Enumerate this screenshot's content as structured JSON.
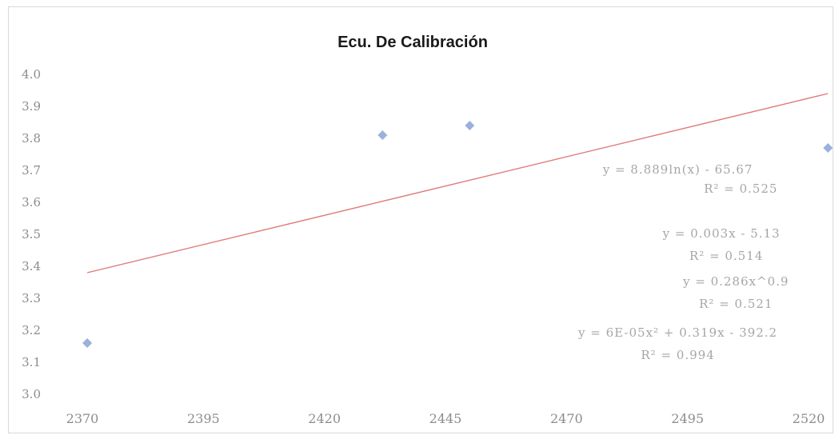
{
  "chart_data": {
    "type": "scatter",
    "title": "Ecu. De Calibración",
    "xlabel": "",
    "ylabel": "",
    "xlim": [
      2370,
      2520
    ],
    "ylim": [
      3.0,
      4.0
    ],
    "x_ticks": [
      "2370",
      "2395",
      "2420",
      "2445",
      "2470",
      "2495",
      "2520"
    ],
    "y_ticks": [
      "3.0",
      "3.1",
      "3.2",
      "3.3",
      "3.4",
      "3.5",
      "3.6",
      "3.7",
      "3.8",
      "3.9",
      "4.0"
    ],
    "grid": false,
    "legend": "none",
    "series": [
      {
        "points": [
          {
            "x": 2371,
            "y": 3.16
          },
          {
            "x": 2432,
            "y": 3.81
          },
          {
            "x": 2450,
            "y": 3.84
          },
          {
            "x": 2524,
            "y": 3.77
          }
        ],
        "color": "#9bb1dc"
      }
    ],
    "trendline": {
      "start": {
        "x": 2371,
        "y": 3.38
      },
      "end": {
        "x": 2524,
        "y": 3.94
      },
      "color": "#e07a7a"
    },
    "annotations": [
      {
        "id": "eq1",
        "text": "y = 8.889ln(x) - 65.67",
        "x": 2493,
        "y": 3.69
      },
      {
        "id": "r1",
        "text": "R² = 0.525",
        "x": 2506,
        "y": 3.63
      },
      {
        "id": "eq2",
        "text": "y = 0.003x - 5.13",
        "x": 2502,
        "y": 3.49
      },
      {
        "id": "r2",
        "text": "R² = 0.514",
        "x": 2503,
        "y": 3.42
      },
      {
        "id": "eq3",
        "text": "y = 0.286x^0.9",
        "x": 2505,
        "y": 3.34
      },
      {
        "id": "r3",
        "text": "R² = 0.521",
        "x": 2505,
        "y": 3.27
      },
      {
        "id": "eq4",
        "text": "y = 6E-05x² + 0.319x - 392.2",
        "x": 2493,
        "y": 3.18
      },
      {
        "id": "r4",
        "text": "R² = 0.994",
        "x": 2493,
        "y": 3.11
      }
    ]
  }
}
